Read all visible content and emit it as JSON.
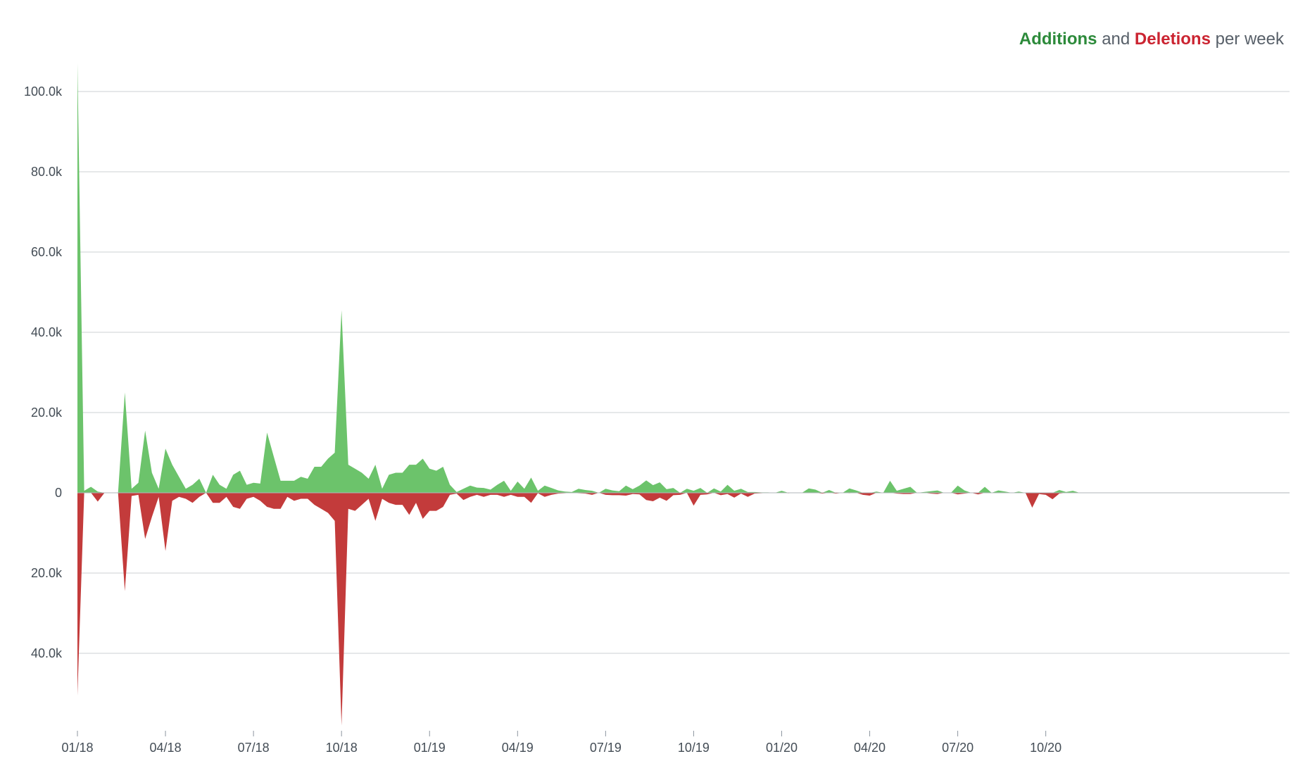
{
  "legend": {
    "additions": "Additions",
    "and": "and",
    "deletions": "Deletions",
    "suffix": "per week"
  },
  "chart_data": {
    "type": "area",
    "title": "Additions and Deletions per week",
    "xlabel": "",
    "ylabel": "",
    "colors": {
      "additions": "#6cc36b",
      "deletions": "#c33b3b"
    },
    "x_start_week": "2017-12-31",
    "x_tick_labels": [
      "01/18",
      "04/18",
      "07/18",
      "10/18",
      "01/19",
      "04/19",
      "07/19",
      "10/19",
      "01/20",
      "04/20",
      "07/20",
      "10/20"
    ],
    "x_tick_weeks": [
      0,
      13,
      26,
      39,
      52,
      65,
      78,
      91,
      104,
      117,
      130,
      143
    ],
    "y_tick_labels": [
      "100.0k",
      "80.0k",
      "60.0k",
      "40.0k",
      "20.0k",
      "0",
      "20.0k",
      "40.0k"
    ],
    "y_tick_values": [
      100000,
      80000,
      60000,
      40000,
      20000,
      0,
      -20000,
      -40000
    ],
    "ylim": [
      -58000,
      107000
    ],
    "grid": true,
    "legend_position": "top-right",
    "series": [
      {
        "name": "Additions",
        "values": [
          107000,
          500,
          1500,
          300,
          0,
          0,
          0,
          25000,
          1000,
          2500,
          15500,
          5000,
          1000,
          11000,
          7000,
          4000,
          1000,
          2000,
          3500,
          0,
          4500,
          2000,
          1000,
          4500,
          5500,
          2000,
          2500,
          2300,
          15000,
          9000,
          3000,
          3000,
          3000,
          4000,
          3500,
          6500,
          6500,
          8500,
          10000,
          45500,
          7000,
          6000,
          5000,
          3500,
          7000,
          1000,
          4500,
          5000,
          5000,
          7000,
          7000,
          8500,
          6000,
          5500,
          6500,
          2000,
          200,
          1000,
          1800,
          1300,
          1200,
          800,
          2000,
          3000,
          500,
          2800,
          1000,
          3800,
          500,
          1800,
          1200,
          600,
          300,
          200,
          1000,
          700,
          500,
          0,
          1000,
          600,
          400,
          1800,
          900,
          1800,
          3100,
          1900,
          2600,
          900,
          1200,
          0,
          1000,
          500,
          1200,
          0,
          1100,
          300,
          2000,
          500,
          1000,
          200,
          200,
          100,
          100,
          0,
          500,
          0,
          0,
          0,
          1100,
          800,
          0,
          700,
          0,
          0,
          1100,
          600,
          0,
          0,
          300,
          0,
          3000,
          500,
          1000,
          1500,
          0,
          200,
          400,
          600,
          0,
          0,
          1800,
          600,
          0,
          0,
          1500,
          0,
          600,
          300,
          0,
          300,
          0,
          0,
          0,
          0,
          0,
          700,
          200,
          500,
          0,
          0
        ]
      },
      {
        "name": "Deletions",
        "values": [
          -50500,
          0,
          0,
          -2200,
          0,
          0,
          0,
          -24500,
          -800,
          -500,
          -11500,
          -6000,
          -1000,
          -14500,
          -2000,
          -1000,
          -1500,
          -2500,
          -1000,
          0,
          -2500,
          -2500,
          -1000,
          -3500,
          -4000,
          -1500,
          -1000,
          -2000,
          -3500,
          -4000,
          -4000,
          -1000,
          -2000,
          -1500,
          -1500,
          -3000,
          -4000,
          -5000,
          -7000,
          -58000,
          -4000,
          -4500,
          -3000,
          -1500,
          -7000,
          -1500,
          -2500,
          -3000,
          -3000,
          -5500,
          -2500,
          -6500,
          -4500,
          -4500,
          -3500,
          -500,
          -200,
          -1800,
          -1000,
          -500,
          -1000,
          -500,
          -500,
          -1000,
          -500,
          -1000,
          -1000,
          -2500,
          -100,
          -1000,
          -500,
          -200,
          -100,
          0,
          -100,
          -200,
          -500,
          0,
          -500,
          -600,
          -600,
          -700,
          -300,
          -400,
          -1800,
          -2100,
          -1200,
          -2000,
          -600,
          -500,
          0,
          -3200,
          -500,
          -400,
          0,
          -600,
          -300,
          -1200,
          -200,
          -1000,
          -200,
          -100,
          0,
          0,
          0,
          -100,
          0,
          0,
          0,
          0,
          -200,
          0,
          -200,
          0,
          -100,
          0,
          -500,
          -700,
          0,
          0,
          0,
          -200,
          -300,
          -300,
          0,
          0,
          -200,
          -300,
          0,
          0,
          -400,
          -200,
          0,
          -400,
          0,
          0,
          0,
          0,
          0,
          0,
          0,
          -3700,
          -300,
          -500,
          -1600,
          -200,
          0
        ]
      }
    ]
  }
}
